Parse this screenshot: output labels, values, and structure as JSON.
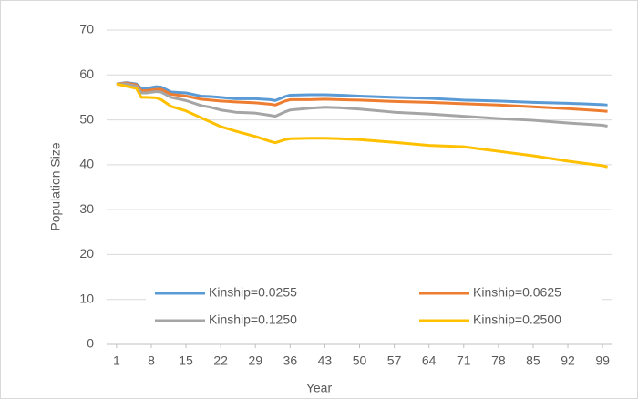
{
  "chart_data": {
    "type": "line",
    "x_label": "Year",
    "y_label": "Population Size",
    "x": [
      1,
      3,
      5,
      6,
      7,
      9,
      10,
      12,
      15,
      18,
      20,
      22,
      25,
      29,
      32,
      33,
      35,
      36,
      40,
      43,
      46,
      50,
      57,
      64,
      71,
      78,
      85,
      92,
      99,
      100
    ],
    "series": [
      {
        "name": "Kinship=0.0255",
        "color": "#5b9bd5",
        "values": [
          58,
          58.3,
          58,
          57,
          57,
          57.4,
          57.3,
          56.2,
          56,
          55.3,
          55.2,
          55,
          54.7,
          54.7,
          54.5,
          54.3,
          55.2,
          55.5,
          55.6,
          55.6,
          55.5,
          55.3,
          55,
          54.8,
          54.4,
          54.2,
          53.9,
          53.7,
          53.4,
          53.3
        ]
      },
      {
        "name": "Kinship=0.0625",
        "color": "#ed7d31",
        "values": [
          58,
          58.2,
          57.8,
          56.5,
          56.5,
          56.8,
          56.8,
          55.7,
          55.3,
          54.6,
          54.4,
          54.2,
          54,
          53.8,
          53.5,
          53.3,
          54.2,
          54.5,
          54.5,
          54.6,
          54.5,
          54.4,
          54.1,
          53.9,
          53.6,
          53.3,
          52.9,
          52.5,
          52,
          51.9
        ]
      },
      {
        "name": "Kinship=0.1250",
        "color": "#a5a5a5",
        "values": [
          58,
          58,
          57.5,
          56,
          56,
          56.3,
          56.2,
          55,
          54.3,
          53.2,
          52.8,
          52.2,
          51.7,
          51.5,
          51,
          50.8,
          51.8,
          52.2,
          52.6,
          52.8,
          52.7,
          52.4,
          51.7,
          51.3,
          50.8,
          50.3,
          49.9,
          49.3,
          48.8,
          48.6
        ]
      },
      {
        "name": "Kinship=0.2500",
        "color": "#ffc000",
        "values": [
          58,
          57.5,
          57,
          55,
          55,
          54.9,
          54.5,
          53,
          52,
          50.5,
          49.5,
          48.5,
          47.5,
          46.3,
          45.2,
          44.9,
          45.6,
          45.8,
          45.9,
          45.9,
          45.8,
          45.6,
          45,
          44.3,
          44,
          43,
          42,
          40.8,
          39.8,
          39.5
        ]
      }
    ],
    "xlim": [
      -1,
      101
    ],
    "xticks": [
      1,
      8,
      15,
      22,
      29,
      36,
      43,
      50,
      57,
      64,
      71,
      78,
      85,
      92,
      99
    ],
    "ylim": [
      0,
      70
    ],
    "yticks": [
      0,
      10,
      20,
      30,
      40,
      50,
      60,
      70
    ],
    "grid": true
  }
}
